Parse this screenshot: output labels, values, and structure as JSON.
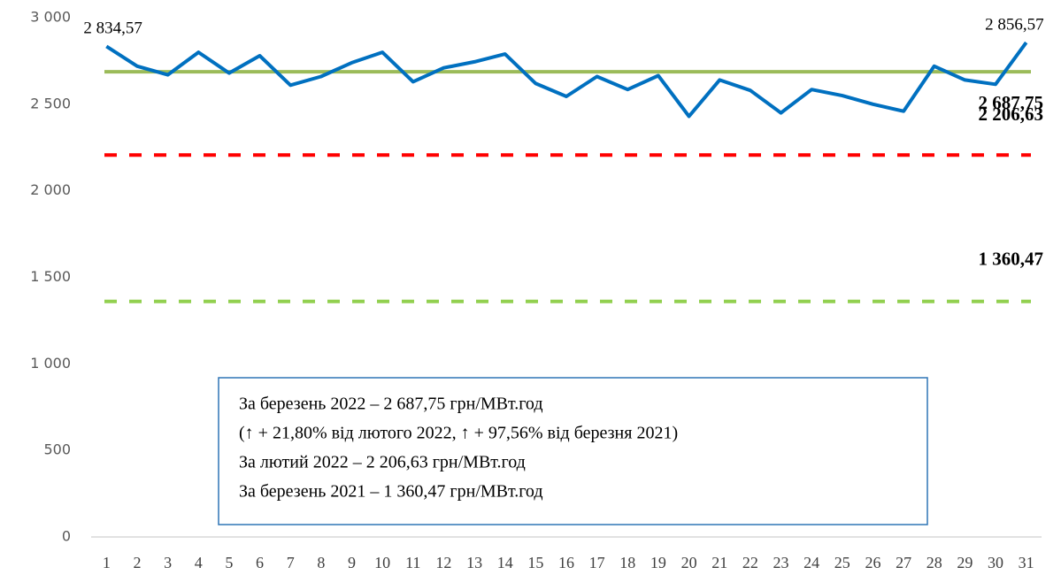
{
  "chart_data": {
    "type": "line",
    "categories": [
      "1",
      "2",
      "3",
      "4",
      "5",
      "6",
      "7",
      "8",
      "9",
      "10",
      "11",
      "12",
      "13",
      "14",
      "15",
      "16",
      "17",
      "18",
      "19",
      "20",
      "21",
      "22",
      "23",
      "24",
      "25",
      "26",
      "27",
      "28",
      "29",
      "30",
      "31"
    ],
    "series": [
      {
        "color": "#0070c0",
        "values": [
          2834.57,
          2720,
          2670,
          2800,
          2680,
          2780,
          2610,
          2660,
          2740,
          2800,
          2630,
          2710,
          2745,
          2790,
          2620,
          2545,
          2660,
          2585,
          2665,
          2430,
          2640,
          2580,
          2450,
          2585,
          2550,
          2500,
          2460,
          2720,
          2640,
          2615,
          2856.57
        ],
        "value_labels": [
          "2 834,57",
          null,
          null,
          null,
          null,
          null,
          null,
          null,
          null,
          null,
          null,
          null,
          null,
          null,
          null,
          null,
          null,
          null,
          null,
          null,
          null,
          null,
          null,
          null,
          null,
          null,
          null,
          null,
          null,
          null,
          "2 856,57"
        ]
      }
    ],
    "reference_lines": [
      {
        "value": 2687.75,
        "label": "2 687,75",
        "color": "#9bbb59",
        "style": "solid"
      },
      {
        "value": 2206.63,
        "label": "2 206,63",
        "color": "#ff0000",
        "style": "dashed"
      },
      {
        "value": 1360.47,
        "label": "1 360,47",
        "color": "#92d050",
        "style": "dashed"
      }
    ],
    "ylim": [
      0,
      3000
    ],
    "yticks": [
      0,
      500,
      {
        "value": 1000,
        "label": "1 000"
      },
      {
        "value": 1500,
        "label": "1 500"
      },
      {
        "value": 2000,
        "label": "2 000"
      },
      {
        "value": 2500,
        "label": "2 500"
      },
      {
        "value": 3000,
        "label": "3 000"
      }
    ],
    "grid": false,
    "annotation": [
      "За березень 2022 – 2 687,75 грн/МВт.год",
      "(↑ + 21,80% від лютого 2022, ↑ + 97,56% від березня 2021)",
      "За лютий 2022 – 2 206,63 грн/МВт.год",
      "За березень 2021 – 1 360,47  грн/МВт.год"
    ]
  }
}
